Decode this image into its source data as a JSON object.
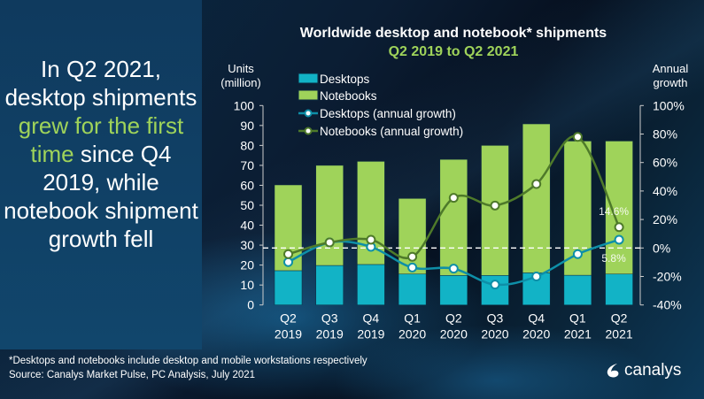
{
  "headline": {
    "part1": "In Q2 2021, desktop shipments ",
    "highlight": "grew for the first time",
    "part2": " since Q4 2019, while notebook shipment growth fell"
  },
  "colors": {
    "desktops": "#12b3c6",
    "notebooks": "#9fd35a",
    "desktop_line": "#0e8fa8",
    "notebook_line": "#4e7a2a",
    "highlight": "#9fd35a"
  },
  "chart_data": {
    "type": "bar",
    "title": "Worldwide desktop and notebook* shipments",
    "subtitle": "Q2 2019 to Q2 2021",
    "ylabel": "Units (million)",
    "y2label": "Annual growth",
    "ylim": [
      0,
      100
    ],
    "y2lim": [
      -40,
      100
    ],
    "yticks": [
      "0",
      "10",
      "20",
      "30",
      "40",
      "50",
      "60",
      "70",
      "80",
      "90",
      "100"
    ],
    "y2ticks": [
      "-40%",
      "-20%",
      "0%",
      "20%",
      "40%",
      "60%",
      "80%",
      "100%"
    ],
    "categories": [
      [
        "Q2",
        "2019"
      ],
      [
        "Q3",
        "2019"
      ],
      [
        "Q4",
        "2019"
      ],
      [
        "Q1",
        "2020"
      ],
      [
        "Q2",
        "2020"
      ],
      [
        "Q3",
        "2020"
      ],
      [
        "Q4",
        "2020"
      ],
      [
        "Q1",
        "2021"
      ],
      [
        "Q2",
        "2021"
      ]
    ],
    "series": [
      {
        "name": "Desktops",
        "type": "bar",
        "stack": true,
        "values": [
          17.2,
          19.8,
          20.3,
          15.5,
          14.8,
          14.8,
          16.1,
          14.9,
          15.5
        ]
      },
      {
        "name": "Notebooks",
        "type": "bar",
        "stack": true,
        "values": [
          43.0,
          50.2,
          51.7,
          37.9,
          58.2,
          65.2,
          74.7,
          67.3,
          66.7
        ]
      },
      {
        "name": "Desktops (annual growth)",
        "type": "line",
        "axis": "right",
        "values": [
          -9.9,
          3.9,
          0.8,
          -13.7,
          -14.5,
          -25.7,
          -20.0,
          -4.3,
          5.8
        ]
      },
      {
        "name": "Notebooks (annual growth)",
        "type": "line",
        "axis": "right",
        "values": [
          -4.3,
          3.9,
          5.8,
          -6.2,
          35.2,
          29.8,
          44.9,
          78.0,
          14.6
        ]
      }
    ],
    "annotations": [
      "14.6%",
      "5.8%"
    ],
    "legend": "top-left"
  },
  "footer": {
    "note": "*Desktops and notebooks include desktop and mobile workstations respectively",
    "source": "Source: Canalys Market Pulse, PC Analysis, July 2021"
  },
  "logo": {
    "text": "canalys"
  }
}
